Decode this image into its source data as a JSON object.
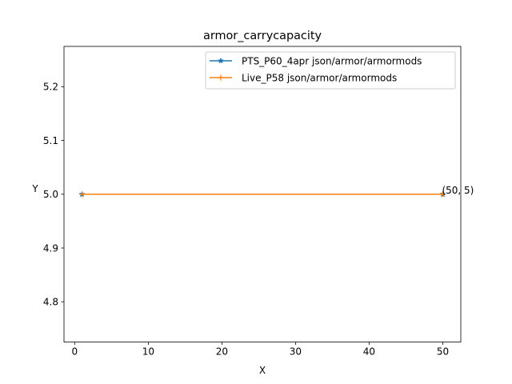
{
  "chart_data": {
    "type": "line",
    "title": "armor_carrycapacity",
    "xlabel": "X",
    "ylabel": "Y",
    "xlim": [
      -1.45,
      52.45
    ],
    "ylim": [
      4.725,
      5.275
    ],
    "xticks": [
      0,
      10,
      20,
      30,
      40,
      50
    ],
    "yticks": [
      4.8,
      4.9,
      5.0,
      5.1,
      5.2
    ],
    "xtick_labels": [
      "0",
      "10",
      "20",
      "30",
      "40",
      "50"
    ],
    "ytick_labels": [
      "4.8",
      "4.9",
      "5.0",
      "5.1",
      "5.2"
    ],
    "grid": false,
    "legend_position": "top-right",
    "series": [
      {
        "name": "PTS_P60_4apr json/armor/armormods",
        "color": "#1f77b4",
        "marker": "star",
        "x": [
          1,
          50
        ],
        "y": [
          5,
          5
        ]
      },
      {
        "name": "Live_P58 json/armor/armormods",
        "color": "#ff7f0e",
        "marker": "plus",
        "x": [
          1,
          50
        ],
        "y": [
          5,
          5
        ]
      }
    ],
    "annotations": [
      {
        "text": "(50, 5)",
        "x": 50,
        "y": 5
      }
    ]
  }
}
